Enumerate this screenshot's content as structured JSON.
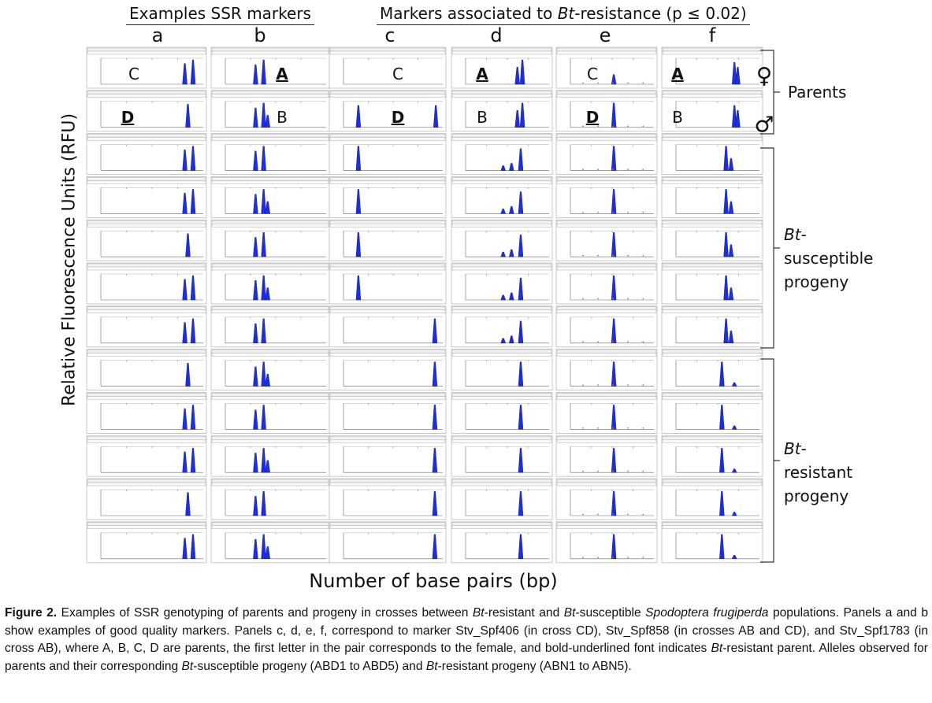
{
  "header": {
    "left_title": "Examples SSR markers",
    "right_title": [
      {
        "text": "Markers associated to "
      },
      {
        "text": "Bt",
        "italic": true
      },
      {
        "text": "-resistance (p ≤ 0.02)"
      }
    ]
  },
  "columns": [
    "a",
    "b",
    "c",
    "d",
    "e",
    "f"
  ],
  "parents": [
    {
      "female": {
        "text": "C"
      },
      "male": {
        "text": "D",
        "underline": true
      }
    },
    {
      "female": {
        "text": "A",
        "underline": true
      },
      "male": {
        "text": "B"
      }
    },
    {
      "female": {
        "text": "C"
      },
      "male": {
        "text": "D",
        "underline": true
      }
    },
    {
      "female": {
        "text": "A",
        "underline": true
      },
      "male": {
        "text": "B"
      }
    },
    {
      "female": {
        "text": "C"
      },
      "male": {
        "text": "D",
        "underline": true
      }
    },
    {
      "female": {
        "text": "A",
        "underline": true
      },
      "male": {
        "text": "B"
      }
    }
  ],
  "symbols": {
    "female": "♀",
    "male": "♂"
  },
  "groups": {
    "parents": "Parents",
    "susceptible": [
      [
        {
          "text": "Bt",
          "italic": true
        },
        {
          "text": "-"
        }
      ],
      [
        {
          "text": "susceptible"
        }
      ],
      [
        {
          "text": "progeny"
        }
      ]
    ],
    "resistant": [
      [
        {
          "text": "Bt",
          "italic": true
        },
        {
          "text": "-"
        }
      ],
      [
        {
          "text": "resistant"
        }
      ],
      [
        {
          "text": "progeny"
        }
      ]
    ]
  },
  "y_axis_label": "Relative Fluorescence Units (RFU)",
  "x_axis_label": "Number of base pairs (bp)",
  "caption": [
    {
      "text": "Figure 2.",
      "bold": true
    },
    {
      "text": " Examples of SSR genotyping of parents and progeny in crosses between "
    },
    {
      "text": "Bt",
      "italic": true
    },
    {
      "text": "-resistant and "
    },
    {
      "text": "Bt",
      "italic": true
    },
    {
      "text": "-susceptible "
    },
    {
      "text": "Spodoptera frugiperda",
      "italic": true
    },
    {
      "text": " populations.  Panels a and b show examples of good quality markers.  Panels c, d, e, f, correspond to marker Stv_Spf406 (in cross CD), Stv_Spf858 (in crosses AB and CD), and Stv_Spf1783 (in cross AB), where A, B, C, D are parents, the first letter in the pair corresponds to the female, and bold-underlined font indicates "
    },
    {
      "text": "Bt",
      "italic": true
    },
    {
      "text": "-resistant parent.  Alleles observed for parents and their corresponding "
    },
    {
      "text": "Bt",
      "italic": true
    },
    {
      "text": "-susceptible progeny (ABD1 to ABD5) and "
    },
    {
      "text": "Bt",
      "italic": true
    },
    {
      "text": "-resistant progeny (ABN1 to ABN5)."
    }
  ]
}
